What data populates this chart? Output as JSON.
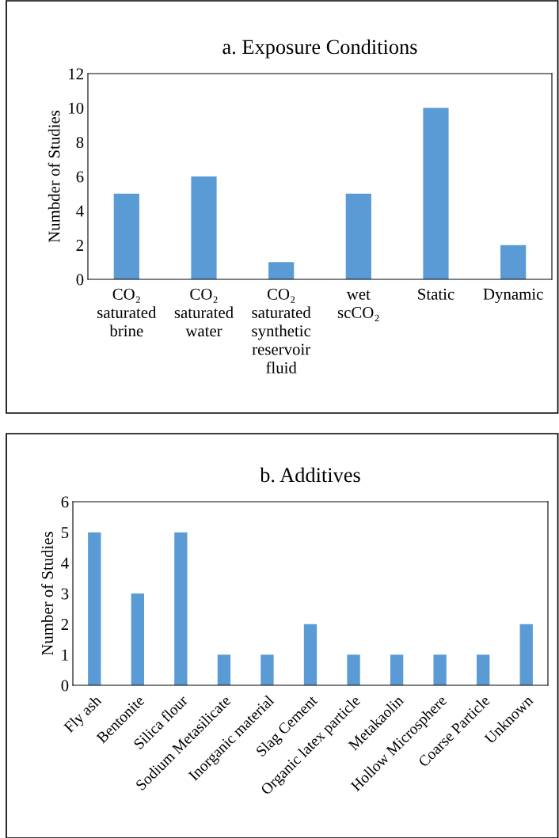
{
  "chart_data": [
    {
      "type": "bar",
      "title": "a. Exposure Conditions",
      "ylabel": "Numbder of Studies",
      "categories": [
        "CO₂\nsaturated\nbrine",
        "CO₂\nsaturated\nwater",
        "CO₂\nsaturated\nsynthetic\nreservoir\nfluid",
        "wet\nscCO₂",
        "Static",
        "Dynamic"
      ],
      "values": [
        5,
        6,
        1,
        5,
        10,
        2
      ],
      "color": "#5b9bd5",
      "ylim": [
        0,
        12
      ],
      "yticks": [
        0,
        2,
        4,
        6,
        8,
        10,
        12
      ],
      "grid": false,
      "legend": false
    },
    {
      "type": "bar",
      "title": "b. Additives",
      "ylabel": "Number of Studies",
      "categories": [
        "Fly ash",
        "Bentonite",
        "Silica flour",
        "Sodium Metasilicate",
        "Inorganic material",
        "Slag Cement",
        "Organic latex particle",
        "Metakaolin",
        "Hollow Microsphere",
        "Coarse Particle",
        "Unknown"
      ],
      "values": [
        5,
        3,
        5,
        1,
        1,
        2,
        1,
        1,
        1,
        1,
        2
      ],
      "color": "#5b9bd5",
      "ylim": [
        0,
        6
      ],
      "yticks": [
        0,
        1,
        2,
        3,
        4,
        5,
        6
      ],
      "grid": false,
      "legend": false
    }
  ]
}
